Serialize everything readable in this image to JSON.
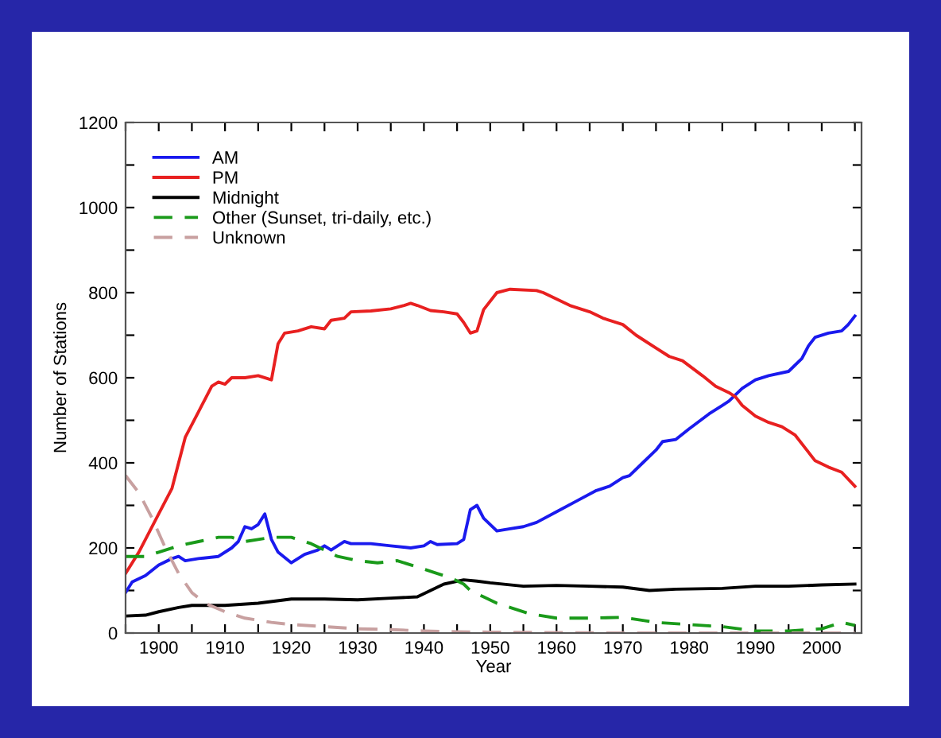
{
  "chart_data": {
    "type": "line",
    "xlabel": "Year",
    "ylabel": "Number of Stations",
    "xlim": [
      1895,
      2006
    ],
    "ylim": [
      0,
      1200
    ],
    "xticks": [
      {
        "value": 1895,
        "label": null
      },
      1900,
      {
        "value": 1905,
        "label": null
      },
      1910,
      {
        "value": 1915,
        "label": null
      },
      1920,
      {
        "value": 1925,
        "label": null
      },
      1930,
      {
        "value": 1935,
        "label": null
      },
      1940,
      {
        "value": 1945,
        "label": null
      },
      1950,
      {
        "value": 1955,
        "label": null
      },
      1960,
      {
        "value": 1965,
        "label": null
      },
      1970,
      {
        "value": 1975,
        "label": null
      },
      1980,
      {
        "value": 1985,
        "label": null
      },
      1990,
      {
        "value": 1995,
        "label": null
      },
      2000,
      {
        "value": 2005,
        "label": null
      }
    ],
    "yticks": [
      0,
      {
        "value": 100,
        "label": null
      },
      200,
      {
        "value": 300,
        "label": null
      },
      400,
      {
        "value": 500,
        "label": null
      },
      600,
      {
        "value": 700,
        "label": null
      },
      800,
      {
        "value": 900,
        "label": null
      },
      1000,
      {
        "value": 1100,
        "label": null
      },
      1200
    ],
    "grid": false,
    "legend": "top left",
    "marker": "none",
    "series": [
      {
        "name": "AM",
        "color": "#1a1aee",
        "line_style": "solid",
        "x": [
          1895,
          1896,
          1898,
          1900,
          1902,
          1903,
          1904,
          1906,
          1909,
          1911,
          1912,
          1913,
          1914,
          1915,
          1916,
          1917,
          1918,
          1920,
          1922,
          1924,
          1925,
          1926,
          1928,
          1929,
          1932,
          1935,
          1938,
          1940,
          1941,
          1942,
          1945,
          1946,
          1947,
          1948,
          1949,
          1951,
          1953,
          1955,
          1957,
          1960,
          1963,
          1966,
          1968,
          1970,
          1971,
          1973,
          1975,
          1976,
          1978,
          1980,
          1983,
          1985,
          1986,
          1988,
          1990,
          1992,
          1995,
          1997,
          1998,
          1999,
          2001,
          2003,
          2004,
          2005
        ],
        "values": [
          95,
          120,
          135,
          160,
          175,
          180,
          170,
          175,
          180,
          200,
          215,
          250,
          245,
          255,
          280,
          220,
          190,
          165,
          185,
          195,
          205,
          195,
          215,
          210,
          210,
          205,
          200,
          205,
          215,
          208,
          210,
          220,
          290,
          300,
          270,
          240,
          245,
          250,
          260,
          285,
          310,
          335,
          345,
          365,
          370,
          400,
          430,
          450,
          455,
          480,
          515,
          535,
          545,
          575,
          595,
          605,
          615,
          645,
          675,
          695,
          705,
          710,
          725,
          745
        ]
      },
      {
        "name": "PM",
        "color": "#e82020",
        "line_style": "solid",
        "x": [
          1895,
          1897,
          1900,
          1902,
          1903,
          1904,
          1906,
          1908,
          1909,
          1910,
          1911,
          1913,
          1915,
          1917,
          1918,
          1919,
          1921,
          1923,
          1925,
          1926,
          1928,
          1929,
          1932,
          1935,
          1937,
          1938,
          1939,
          1941,
          1943,
          1945,
          1946,
          1947,
          1948,
          1949,
          1951,
          1953,
          1957,
          1958,
          1960,
          1962,
          1965,
          1967,
          1970,
          1972,
          1975,
          1977,
          1979,
          1982,
          1984,
          1986,
          1987,
          1988,
          1990,
          1992,
          1994,
          1996,
          1998,
          1999,
          2001,
          2003,
          2005
        ],
        "values": [
          140,
          190,
          280,
          340,
          400,
          460,
          520,
          580,
          590,
          585,
          600,
          600,
          605,
          595,
          680,
          705,
          710,
          720,
          715,
          735,
          740,
          755,
          757,
          762,
          770,
          775,
          770,
          758,
          755,
          750,
          730,
          705,
          710,
          760,
          800,
          808,
          805,
          800,
          785,
          770,
          755,
          740,
          725,
          700,
          670,
          650,
          640,
          605,
          580,
          565,
          555,
          535,
          510,
          495,
          485,
          465,
          425,
          405,
          390,
          378,
          345
        ]
      },
      {
        "name": "Midnight",
        "color": "#000000",
        "line_style": "solid",
        "x": [
          1895,
          1898,
          1900,
          1903,
          1905,
          1910,
          1915,
          1920,
          1925,
          1930,
          1935,
          1939,
          1941,
          1943,
          1946,
          1948,
          1950,
          1955,
          1960,
          1965,
          1970,
          1974,
          1978,
          1985,
          1990,
          1995,
          2000,
          2005
        ],
        "values": [
          40,
          42,
          50,
          60,
          65,
          65,
          70,
          80,
          80,
          78,
          82,
          85,
          100,
          115,
          125,
          122,
          118,
          110,
          112,
          110,
          108,
          100,
          103,
          105,
          110,
          110,
          113,
          115
        ]
      },
      {
        "name": "Other (Sunset, tri-daily, etc.)",
        "color": "#1a9a1a",
        "line_style": "dashed",
        "x": [
          1895,
          1898,
          1900,
          1903,
          1906,
          1909,
          1911,
          1913,
          1915,
          1917,
          1920,
          1923,
          1925,
          1927,
          1930,
          1933,
          1936,
          1939,
          1942,
          1944,
          1946,
          1947,
          1949,
          1951,
          1953,
          1956,
          1960,
          1965,
          1970,
          1975,
          1980,
          1985,
          1990,
          1995,
          2000,
          2003,
          2005
        ],
        "values": [
          180,
          180,
          190,
          205,
          215,
          225,
          225,
          215,
          220,
          225,
          225,
          210,
          195,
          180,
          170,
          165,
          170,
          155,
          140,
          130,
          115,
          100,
          85,
          70,
          60,
          45,
          35,
          35,
          37,
          25,
          20,
          15,
          5,
          5,
          10,
          25,
          18
        ]
      },
      {
        "name": "Unknown",
        "color": "#c8a0a0",
        "line_style": "dashed",
        "x": [
          1895,
          1897,
          1899,
          1901,
          1903,
          1905,
          1907,
          1910,
          1913,
          1917,
          1920,
          1925,
          1930,
          1935,
          1940,
          1945,
          1950,
          1960,
          1970,
          2005
        ],
        "values": [
          370,
          330,
          270,
          200,
          140,
          95,
          70,
          50,
          35,
          25,
          20,
          15,
          10,
          8,
          5,
          3,
          2,
          1,
          0,
          0
        ]
      }
    ]
  }
}
